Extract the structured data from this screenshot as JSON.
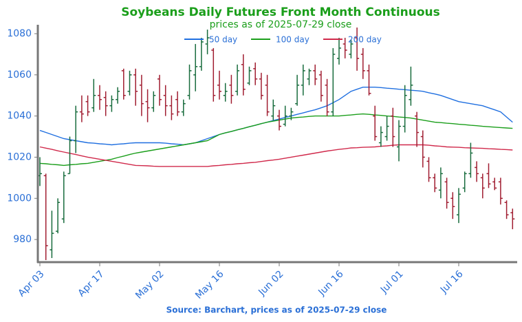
{
  "chart_data": {
    "type": "ohlc",
    "title": "Soybeans Daily Futures Front Month Continuous",
    "subtitle": "prices as of 2025-07-29 close",
    "source": "Source: Barchart, prices as of 2025-07-29 close",
    "categories": [
      "Apr 03",
      null,
      null,
      null,
      null,
      null,
      null,
      null,
      null,
      null,
      "Apr 17",
      null,
      null,
      null,
      null,
      null,
      null,
      null,
      null,
      null,
      "May 02",
      null,
      null,
      null,
      null,
      null,
      null,
      null,
      null,
      null,
      "May 16",
      null,
      null,
      null,
      null,
      null,
      null,
      null,
      null,
      null,
      "Jun 02",
      null,
      null,
      null,
      null,
      null,
      null,
      null,
      null,
      null,
      "Jun 16",
      null,
      null,
      null,
      null,
      null,
      null,
      null,
      null,
      null,
      "Jul 01",
      null,
      null,
      null,
      null,
      null,
      null,
      null,
      null,
      null,
      "Jul 16",
      null,
      null,
      null,
      null,
      null,
      null,
      null,
      null,
      null
    ],
    "open": [
      1011,
      1011,
      975,
      984,
      990,
      1012,
      1028,
      1042,
      1047,
      1044,
      1050,
      1049,
      1045,
      1048,
      1062,
      1052,
      1060,
      1055,
      1047,
      1044,
      1058,
      1050,
      1045,
      1048,
      1042,
      1050,
      1060,
      1064,
      1075,
      1072,
      1055,
      1050,
      1055,
      1052,
      1065,
      1056,
      1063,
      1058,
      1055,
      1040,
      1040,
      1036,
      1040,
      1046,
      1055,
      1058,
      1062,
      1060,
      1055,
      1042,
      1068,
      1075,
      1070,
      1078,
      1070,
      1062,
      1040,
      1027,
      1030,
      1040,
      1025,
      1035,
      1048,
      1040,
      1030,
      1018,
      1010,
      1004,
      1008,
      1000,
      992,
      1005,
      1012,
      1015,
      1010,
      1012,
      1008,
      1008,
      998,
      993
    ],
    "high": [
      1020,
      1012,
      994,
      1000,
      1013,
      1030,
      1045,
      1050,
      1050,
      1058,
      1055,
      1052,
      1050,
      1054,
      1063,
      1062,
      1063,
      1060,
      1053,
      1052,
      1060,
      1055,
      1050,
      1052,
      1048,
      1065,
      1075,
      1078,
      1082,
      1073,
      1062,
      1056,
      1060,
      1065,
      1070,
      1064,
      1066,
      1061,
      1060,
      1048,
      1043,
      1045,
      1044,
      1060,
      1065,
      1063,
      1065,
      1062,
      1058,
      1073,
      1078,
      1078,
      1077,
      1083,
      1073,
      1065,
      1045,
      1035,
      1040,
      1044,
      1038,
      1055,
      1064,
      1042,
      1033,
      1020,
      1012,
      1015,
      1010,
      1003,
      1005,
      1013,
      1027,
      1018,
      1012,
      1017,
      1010,
      1010,
      999,
      995
    ],
    "low": [
      1006,
      970,
      971,
      983,
      988,
      1012,
      1022,
      1037,
      1040,
      1042,
      1043,
      1040,
      1042,
      1046,
      1048,
      1050,
      1045,
      1040,
      1037,
      1042,
      1045,
      1040,
      1038,
      1040,
      1040,
      1048,
      1052,
      1062,
      1070,
      1047,
      1048,
      1047,
      1046,
      1050,
      1050,
      1055,
      1055,
      1048,
      1040,
      1038,
      1033,
      1035,
      1038,
      1045,
      1050,
      1055,
      1055,
      1047,
      1040,
      1040,
      1065,
      1068,
      1068,
      1062,
      1058,
      1050,
      1028,
      1025,
      1028,
      1025,
      1018,
      1032,
      1045,
      1025,
      1015,
      1008,
      1003,
      1000,
      995,
      990,
      988,
      1003,
      1010,
      1008,
      1000,
      1005,
      1004,
      997,
      990,
      985
    ],
    "close": [
      1012,
      977,
      983,
      998,
      1011,
      1028,
      1042,
      1041,
      1042,
      1050,
      1048,
      1045,
      1048,
      1052,
      1050,
      1060,
      1052,
      1046,
      1044,
      1050,
      1048,
      1045,
      1041,
      1042,
      1046,
      1062,
      1064,
      1076,
      1078,
      1050,
      1052,
      1052,
      1050,
      1062,
      1053,
      1062,
      1058,
      1050,
      1042,
      1045,
      1035,
      1040,
      1042,
      1055,
      1062,
      1062,
      1058,
      1050,
      1042,
      1070,
      1073,
      1072,
      1075,
      1068,
      1062,
      1051,
      1030,
      1032,
      1035,
      1030,
      1035,
      1050,
      1055,
      1032,
      1020,
      1010,
      1005,
      1012,
      998,
      996,
      1002,
      1012,
      1022,
      1012,
      1005,
      1007,
      1005,
      1000,
      992,
      990
    ],
    "up_color": "#176b3c",
    "down_color": "#a01c30",
    "moving_averages": [
      {
        "name": "50 day",
        "color": "#1f6fe0",
        "values": [
          1033,
          1032,
          1031,
          1030,
          1029,
          1028.5,
          1028,
          1027.5,
          1027,
          1026.8,
          1026.5,
          1026.3,
          1026,
          1026.3,
          1026.5,
          1026.8,
          1027,
          1027,
          1027,
          1027,
          1027,
          1026.8,
          1026.5,
          1026.3,
          1026,
          1026.5,
          1027,
          1028,
          1029,
          1030,
          1031,
          1031.8,
          1032.5,
          1033.3,
          1034,
          1034.8,
          1035.5,
          1036.3,
          1037,
          1037.8,
          1038.5,
          1039.3,
          1040,
          1040.8,
          1041.5,
          1042.3,
          1043,
          1044,
          1045,
          1046.5,
          1048,
          1050,
          1052,
          1053,
          1054,
          1054,
          1054,
          1053.8,
          1053.5,
          1053.3,
          1053,
          1052.8,
          1052.5,
          1052.3,
          1052,
          1051.3,
          1050.7,
          1050,
          1049,
          1048,
          1047,
          1046.5,
          1046,
          1045.5,
          1045,
          1044,
          1043,
          1042,
          1039.5,
          1037
        ]
      },
      {
        "name": "100 day",
        "color": "#1a9e1a",
        "values": [
          1017,
          1016.8,
          1016.5,
          1016.3,
          1016,
          1016.3,
          1016.5,
          1016.8,
          1017,
          1017.5,
          1018,
          1018.5,
          1019,
          1019.8,
          1020.5,
          1021.3,
          1022,
          1022.5,
          1023,
          1023.5,
          1024,
          1024.5,
          1025,
          1025.5,
          1026,
          1026.5,
          1027,
          1027.5,
          1028,
          1029.5,
          1031,
          1031.8,
          1032.5,
          1033.3,
          1034,
          1034.8,
          1035.5,
          1036.3,
          1037,
          1037.5,
          1038,
          1038.5,
          1039,
          1039.3,
          1039.5,
          1039.8,
          1040,
          1040,
          1040,
          1040,
          1040,
          1040.3,
          1040.5,
          1040.8,
          1041,
          1040.8,
          1040.5,
          1040.3,
          1040,
          1039.8,
          1039.5,
          1039.3,
          1039,
          1038.5,
          1038,
          1037.5,
          1037,
          1036.8,
          1036.5,
          1036.3,
          1036,
          1035.8,
          1035.5,
          1035.3,
          1035,
          1034.8,
          1034.6,
          1034.4,
          1034.2,
          1034
        ]
      },
      {
        "name": "200 day",
        "color": "#d0284a",
        "values": [
          1025,
          1024.4,
          1023.8,
          1023.1,
          1022.5,
          1021.9,
          1021.3,
          1020.6,
          1020,
          1019.5,
          1019,
          1018.5,
          1018,
          1017.5,
          1017,
          1016.5,
          1016,
          1015.9,
          1015.8,
          1015.6,
          1015.5,
          1015.5,
          1015.5,
          1015.5,
          1015.5,
          1015.5,
          1015.5,
          1015.5,
          1015.5,
          1015.8,
          1016,
          1016.3,
          1016.5,
          1016.8,
          1017,
          1017.3,
          1017.5,
          1017.9,
          1018.3,
          1018.6,
          1019,
          1019.5,
          1020,
          1020.5,
          1021,
          1021.5,
          1022,
          1022.5,
          1023,
          1023.4,
          1023.8,
          1024.1,
          1024.5,
          1024.6,
          1024.8,
          1024.9,
          1025,
          1025.3,
          1025.5,
          1025.8,
          1026,
          1026,
          1026,
          1026,
          1026,
          1025.8,
          1025.5,
          1025.3,
          1025,
          1024.9,
          1024.8,
          1024.6,
          1024.5,
          1024.4,
          1024.3,
          1024.1,
          1024,
          1023.8,
          1023.7,
          1023.5
        ]
      }
    ],
    "ylim": [
      969,
      1084
    ],
    "yticks": [
      980,
      1000,
      1020,
      1040,
      1060,
      1080
    ],
    "title_color": "#1a9e1a",
    "tick_color": "#2a6fd6"
  }
}
